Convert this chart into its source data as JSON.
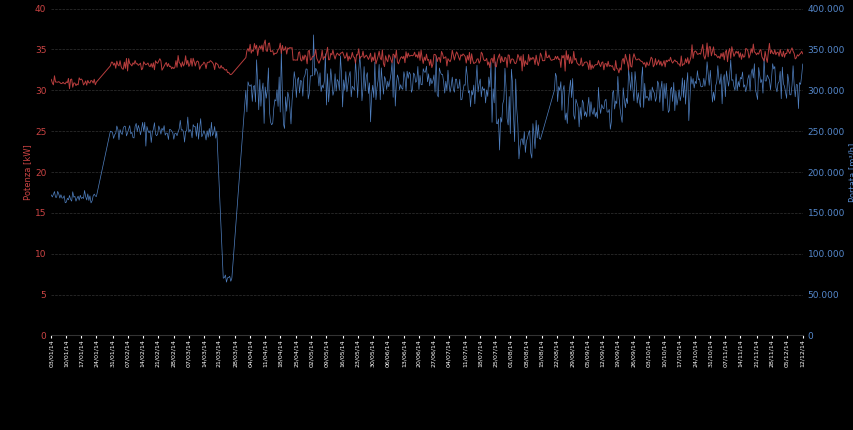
{
  "title": "",
  "left_ylabel": "Potenza [kW]",
  "right_ylabel": "Portata [m³/h]",
  "left_ylim": [
    0,
    40
  ],
  "right_ylim": [
    0,
    400000
  ],
  "left_yticks": [
    0,
    5,
    10,
    15,
    20,
    25,
    30,
    35,
    40
  ],
  "right_yticks": [
    0,
    50000,
    100000,
    150000,
    200000,
    250000,
    300000,
    350000,
    400000
  ],
  "background_color": "#000000",
  "plot_bg_color": "#000000",
  "grid_color": "#555555",
  "line1_color": "#cc4444",
  "line2_color": "#5588cc",
  "tick_label_color_left": "#cc4444",
  "tick_label_color_right": "#5588cc",
  "n_points": 700,
  "seed": 42
}
